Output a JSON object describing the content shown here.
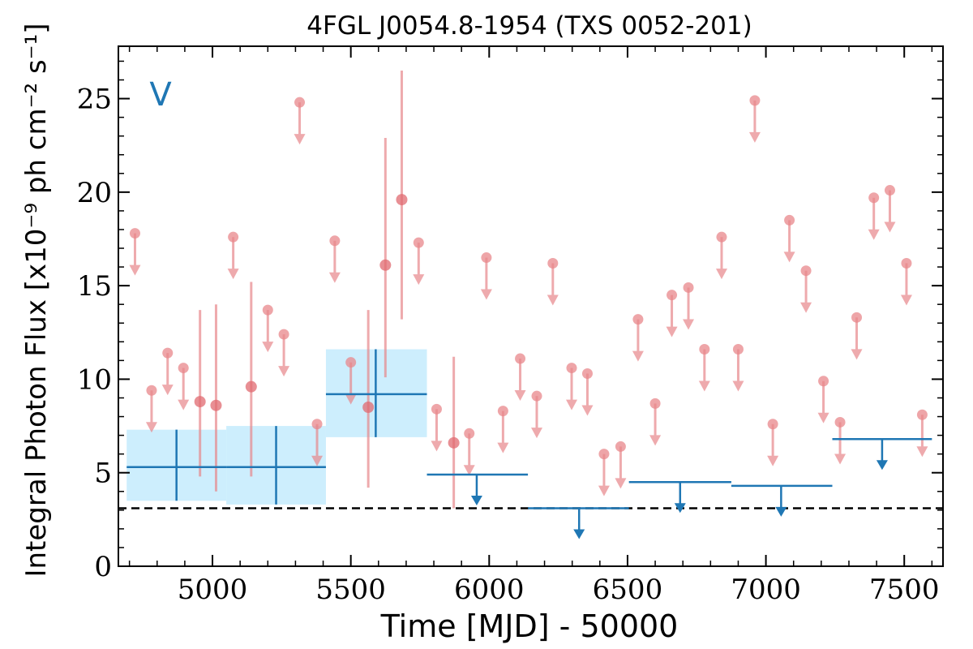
{
  "chart_data": {
    "type": "scatter",
    "title": "4FGL J0054.8-1954 (TXS 0052-201)",
    "xlabel": "Time [MJD] - 50000",
    "ylabel": "Integral Photon Flux [x10⁻⁹ ph cm⁻² s⁻¹]",
    "panel_label": "V",
    "xlim": [
      4660,
      7640
    ],
    "ylim": [
      0,
      27.8
    ],
    "xticks": [
      5000,
      5500,
      6000,
      6500,
      7000,
      7500
    ],
    "xtick_labels": [
      "5000",
      "5500",
      "6000",
      "6500",
      "7000",
      "7500"
    ],
    "yticks": [
      0,
      5,
      10,
      15,
      20,
      25
    ],
    "ytick_labels": [
      "0",
      "5",
      "10",
      "15",
      "20",
      "25"
    ],
    "grid": false,
    "baseline_flux": 3.1,
    "colors": {
      "short_bins": "#e8878b",
      "long_bins": "#1f77b4",
      "long_bins_band": "#cdeefd",
      "baseline": "#000000"
    },
    "short_bin_detections": [
      {
        "x": 4955,
        "y": 8.8,
        "err_low": 4.8,
        "err_high": 13.7
      },
      {
        "x": 5013,
        "y": 8.6,
        "err_low": 4.0,
        "err_high": 14.0
      },
      {
        "x": 5140,
        "y": 9.6,
        "err_low": 4.8,
        "err_high": 15.2
      },
      {
        "x": 5563,
        "y": 8.5,
        "err_low": 4.2,
        "err_high": 13.7
      },
      {
        "x": 5625,
        "y": 16.1,
        "err_low": 10.1,
        "err_high": 22.9
      },
      {
        "x": 5684,
        "y": 19.6,
        "err_low": 13.2,
        "err_high": 26.5
      },
      {
        "x": 5872,
        "y": 6.6,
        "err_low": 3.1,
        "err_high": 11.2
      }
    ],
    "short_bin_upper_limits": [
      {
        "x": 4720,
        "y": 17.8
      },
      {
        "x": 4780,
        "y": 9.4
      },
      {
        "x": 4838,
        "y": 11.4
      },
      {
        "x": 4895,
        "y": 10.6
      },
      {
        "x": 5075,
        "y": 17.6
      },
      {
        "x": 5200,
        "y": 13.7
      },
      {
        "x": 5258,
        "y": 12.4
      },
      {
        "x": 5315,
        "y": 24.8
      },
      {
        "x": 5378,
        "y": 7.6
      },
      {
        "x": 5442,
        "y": 17.4
      },
      {
        "x": 5500,
        "y": 10.9
      },
      {
        "x": 5745,
        "y": 17.3
      },
      {
        "x": 5810,
        "y": 8.4
      },
      {
        "x": 5928,
        "y": 7.1
      },
      {
        "x": 5990,
        "y": 16.5
      },
      {
        "x": 6050,
        "y": 8.3
      },
      {
        "x": 6112,
        "y": 11.1
      },
      {
        "x": 6172,
        "y": 9.1
      },
      {
        "x": 6230,
        "y": 16.2
      },
      {
        "x": 6298,
        "y": 10.6
      },
      {
        "x": 6355,
        "y": 10.3
      },
      {
        "x": 6415,
        "y": 6.0
      },
      {
        "x": 6475,
        "y": 6.4
      },
      {
        "x": 6538,
        "y": 13.2
      },
      {
        "x": 6600,
        "y": 8.7
      },
      {
        "x": 6660,
        "y": 14.5
      },
      {
        "x": 6720,
        "y": 14.9
      },
      {
        "x": 6778,
        "y": 11.6
      },
      {
        "x": 6840,
        "y": 17.6
      },
      {
        "x": 6900,
        "y": 11.6
      },
      {
        "x": 6960,
        "y": 24.9
      },
      {
        "x": 7025,
        "y": 7.6
      },
      {
        "x": 7085,
        "y": 18.5
      },
      {
        "x": 7145,
        "y": 15.8
      },
      {
        "x": 7208,
        "y": 9.9
      },
      {
        "x": 7268,
        "y": 7.7
      },
      {
        "x": 7328,
        "y": 13.3
      },
      {
        "x": 7390,
        "y": 19.7
      },
      {
        "x": 7448,
        "y": 20.1
      },
      {
        "x": 7508,
        "y": 16.2
      },
      {
        "x": 7565,
        "y": 8.1
      }
    ],
    "long_bin_detections": [
      {
        "x": 4870,
        "x_low": 4690,
        "x_high": 5050,
        "y": 5.3,
        "err_low": 3.5,
        "err_high": 7.3
      },
      {
        "x": 5230,
        "x_low": 5050,
        "x_high": 5410,
        "y": 5.3,
        "err_low": 3.3,
        "err_high": 7.5
      },
      {
        "x": 5590,
        "x_low": 5410,
        "x_high": 5775,
        "y": 9.2,
        "err_low": 6.9,
        "err_high": 11.6
      }
    ],
    "long_bin_upper_limits": [
      {
        "x": 5955,
        "x_low": 5775,
        "x_high": 6140,
        "y": 4.9
      },
      {
        "x": 6325,
        "x_low": 6140,
        "x_high": 6505,
        "y": 3.1
      },
      {
        "x": 6690,
        "x_low": 6505,
        "x_high": 6875,
        "y": 4.5
      },
      {
        "x": 7055,
        "x_low": 6875,
        "x_high": 7240,
        "y": 4.3
      },
      {
        "x": 7420,
        "x_low": 7240,
        "x_high": 7600,
        "y": 6.8
      }
    ]
  }
}
